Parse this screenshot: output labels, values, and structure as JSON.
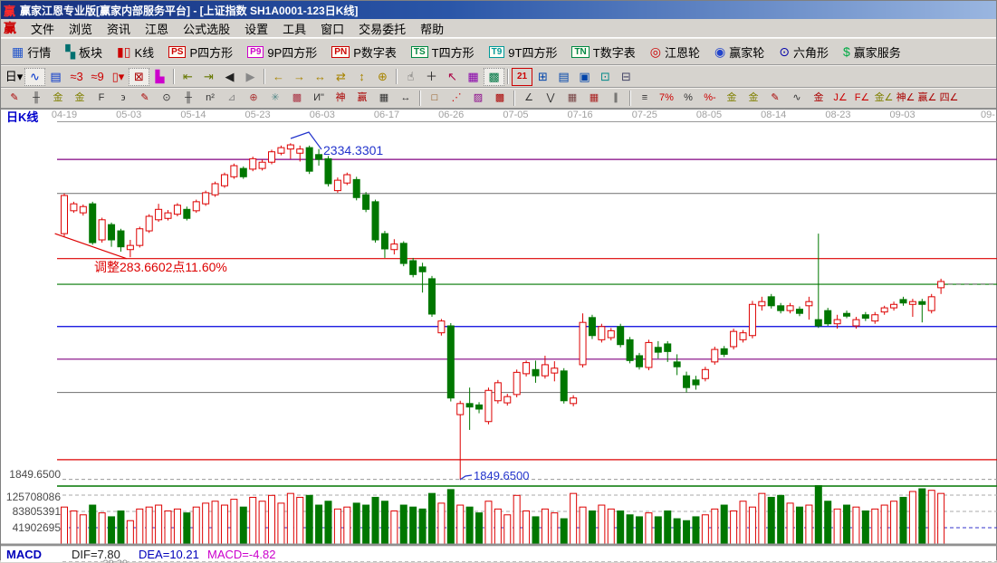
{
  "title_bar": {
    "title": "赢家江恩专业版[赢家内部服务平台] - [上证指数  SH1A0001-123日K线]",
    "logo": "赢"
  },
  "menu_bar": {
    "logo": "赢",
    "items": [
      "文件",
      "浏览",
      "资讯",
      "江恩",
      "公式选股",
      "设置",
      "工具",
      "窗口",
      "交易委托",
      "帮助"
    ]
  },
  "toolbar_main": {
    "items": [
      {
        "label": "行情",
        "glyph": "▦",
        "color": "#2255cc",
        "name": "quotes-button"
      },
      {
        "label": "板块",
        "glyph": "▚",
        "color": "#007070",
        "name": "sectors-button"
      },
      {
        "label": "K线",
        "glyph": "▮▯",
        "color": "#cc0000",
        "name": "kline-button"
      },
      {
        "label": "P四方形",
        "badge": "PS",
        "color": "#cc0000",
        "name": "p-square-button"
      },
      {
        "label": "9P四方形",
        "badge": "P9",
        "color": "#cc00cc",
        "name": "9p-square-button"
      },
      {
        "label": "P数字表",
        "badge": "PN",
        "color": "#cc0000",
        "name": "p-number-table-button"
      },
      {
        "label": "T四方形",
        "badge": "TS",
        "color": "#008844",
        "name": "t-square-button"
      },
      {
        "label": "9T四方形",
        "badge": "T9",
        "color": "#009999",
        "name": "9t-square-button"
      },
      {
        "label": "T数字表",
        "badge": "TN",
        "color": "#008844",
        "name": "t-number-table-button"
      },
      {
        "label": "江恩轮",
        "glyph": "◎",
        "color": "#cc0000",
        "name": "gann-wheel-button"
      },
      {
        "label": "赢家轮",
        "glyph": "◉",
        "color": "#2244cc",
        "name": "winner-wheel-button"
      },
      {
        "label": "六角形",
        "glyph": "⊙",
        "color": "#0000aa",
        "name": "hexagon-button"
      },
      {
        "label": "赢家服务",
        "glyph": "$",
        "color": "#00aa44",
        "name": "winner-service-button"
      }
    ]
  },
  "toolbar_nav": {
    "items": [
      {
        "g": "日▾",
        "c": "#000000",
        "name": "period-day-selector"
      },
      {
        "g": "∿",
        "c": "#0033cc",
        "name": "overlay-style",
        "active": true
      },
      {
        "g": "▤",
        "c": "#0033cc",
        "name": "info-panel"
      },
      {
        "g": "≈3",
        "c": "#cc0000",
        "name": "ma-3"
      },
      {
        "g": "≈9",
        "c": "#cc0000",
        "name": "ma-9"
      },
      {
        "g": "▯▾",
        "c": "#cc0000",
        "name": "candle-type"
      },
      {
        "g": "⊠",
        "c": "#aa0000",
        "name": "gann-marker",
        "active": true
      },
      {
        "g": "▙",
        "c": "#cc00cc",
        "name": "color-histogram"
      },
      {
        "sep": true
      },
      {
        "g": "⇤",
        "c": "#667700",
        "name": "jump-first"
      },
      {
        "g": "⇥",
        "c": "#667700",
        "name": "jump-last"
      },
      {
        "g": "◀",
        "c": "#222222",
        "name": "page-left"
      },
      {
        "g": "▶",
        "c": "#888888",
        "name": "page-right"
      },
      {
        "sep": true
      },
      {
        "g": "←",
        "c": "#a88400",
        "name": "shift-left"
      },
      {
        "g": "→",
        "c": "#a88400",
        "name": "shift-right"
      },
      {
        "g": "↔",
        "c": "#a88400",
        "name": "expand-horizontal"
      },
      {
        "g": "⇄",
        "c": "#a88400",
        "name": "compress-horizontal"
      },
      {
        "g": "↕",
        "c": "#a88400",
        "name": "expand-vertical"
      },
      {
        "g": "⊕",
        "c": "#a88400",
        "name": "zoom-all"
      },
      {
        "sep": true
      },
      {
        "g": "☝",
        "c": "#444444",
        "name": "pan-hand"
      },
      {
        "g": "＋",
        "c": "#222222",
        "name": "crosshair"
      },
      {
        "g": "↖",
        "c": "#aa0044",
        "name": "pointer-select"
      },
      {
        "g": "▦",
        "c": "#8800aa",
        "name": "grid-overlay"
      },
      {
        "g": "▩",
        "c": "#007744",
        "name": "pattern-overlay",
        "active": true
      },
      {
        "sep": true
      },
      {
        "g": "21",
        "c": "#cc0000",
        "name": "calendar",
        "boxed": true
      },
      {
        "g": "⊞",
        "c": "#0044aa",
        "name": "calculator"
      },
      {
        "g": "▤",
        "c": "#0044aa",
        "name": "notes"
      },
      {
        "g": "▣",
        "c": "#0044aa",
        "name": "save"
      },
      {
        "g": "⊡",
        "c": "#008888",
        "name": "export"
      },
      {
        "g": "⊟",
        "c": "#444466",
        "name": "print"
      }
    ]
  },
  "toolbar_draw": {
    "items": [
      {
        "g": "✎",
        "c": "#aa0000",
        "name": "draw-compass"
      },
      {
        "g": "╫",
        "c": "#333333",
        "name": "gann-ruler"
      },
      {
        "g": "金",
        "c": "#808000",
        "name": "gold-ruler-1"
      },
      {
        "g": "金",
        "c": "#808000",
        "name": "gold-ruler-2"
      },
      {
        "g": "F",
        "c": "#333333",
        "name": "fibonacci-ruler"
      },
      {
        "g": "϶",
        "c": "#333333",
        "name": "spiral"
      },
      {
        "g": "✎",
        "c": "#aa0000",
        "name": "pen"
      },
      {
        "g": "⊙",
        "c": "#333333",
        "name": "gann-circle"
      },
      {
        "g": "╫",
        "c": "#333333",
        "name": "price-ruler"
      },
      {
        "g": "n²",
        "c": "#333333",
        "name": "square-of-nine"
      },
      {
        "g": "⊿",
        "c": "#888888",
        "name": "angle-tool"
      },
      {
        "g": "⊕",
        "c": "#aa3333",
        "name": "circle-cross"
      },
      {
        "g": "✳",
        "c": "#558888",
        "name": "star-grid"
      },
      {
        "g": "▩",
        "c": "#aa3344",
        "name": "star-box"
      },
      {
        "g": "И\"",
        "c": "#333333",
        "name": "wave-mark"
      },
      {
        "g": "神",
        "c": "#aa0000",
        "name": "shen-tool"
      },
      {
        "g": "赢",
        "c": "#aa0000",
        "name": "win-grid"
      },
      {
        "g": "▦",
        "c": "#333333",
        "name": "grid-tool"
      },
      {
        "g": "↔",
        "c": "#333333",
        "name": "h-extend"
      },
      {
        "sep": true
      },
      {
        "g": "□",
        "c": "#884400",
        "name": "box-select"
      },
      {
        "g": "⋰",
        "c": "#cc0000",
        "name": "fan-lines"
      },
      {
        "g": "▨",
        "c": "#880088",
        "name": "fan-box"
      },
      {
        "g": "▩",
        "c": "#aa0000",
        "name": "dense-box"
      },
      {
        "sep": true
      },
      {
        "g": "∠",
        "c": "#333333",
        "name": "trend-angle"
      },
      {
        "g": "⋁",
        "c": "#333333",
        "name": "zigzag-tool"
      },
      {
        "g": "▦",
        "c": "#774444",
        "name": "grid-red"
      },
      {
        "g": "▦",
        "c": "#aa2222",
        "name": "grid-red2"
      },
      {
        "g": "∥",
        "c": "#333333",
        "name": "parallel-lines"
      },
      {
        "sep": true
      },
      {
        "g": "≡",
        "c": "#333333",
        "name": "scale-tool"
      },
      {
        "g": "7%",
        "c": "#cc0000",
        "name": "percent-7"
      },
      {
        "g": "%",
        "c": "#333333",
        "name": "percent"
      },
      {
        "g": "%-",
        "c": "#cc0000",
        "name": "percent-line"
      },
      {
        "g": "金",
        "c": "#808000",
        "name": "gold-circle"
      },
      {
        "g": "金",
        "c": "#808000",
        "name": "gold-line"
      },
      {
        "g": "✎",
        "c": "#aa0000",
        "name": "mark-pen"
      },
      {
        "g": "∿",
        "c": "#333333",
        "name": "wave-tool"
      },
      {
        "g": "金",
        "c": "#aa0000",
        "name": "gold-red-line"
      },
      {
        "g": "J∠",
        "c": "#cc0000",
        "name": "j-angle"
      },
      {
        "g": "F∠",
        "c": "#cc0000",
        "name": "f-angle"
      },
      {
        "g": "金∠",
        "c": "#808000",
        "name": "gold-angle"
      },
      {
        "g": "神∠",
        "c": "#aa0000",
        "name": "shen-angle"
      },
      {
        "g": "赢∠",
        "c": "#aa0000",
        "name": "win-angle"
      },
      {
        "g": "四∠",
        "c": "#aa0000",
        "name": "four-angle"
      }
    ]
  },
  "chart": {
    "period_label": "日K线",
    "left_price_label": "1849.6500",
    "macd": {
      "label": "MACD",
      "dif": "DIF=7.80",
      "dea": "DEA=10.21",
      "macd": "MACD=-4.82",
      "scale_partial": "29.29"
    }
  },
  "chart_data": {
    "type": "candlestick",
    "symbol": "上证指数 SH1A0001",
    "period": "日K线",
    "x_labels": [
      "04-19",
      "05-03",
      "05-14",
      "05-23",
      "06-03",
      "06-17",
      "06-26",
      "07-05",
      "07-16",
      "07-25",
      "08-05",
      "08-14",
      "08-23",
      "09-03",
      "09-"
    ],
    "ylim": [
      1840,
      2366
    ],
    "up_color": "#dd0000",
    "down_color": "#007700",
    "candles": [
      [
        2204,
        2262,
        2200,
        2259
      ],
      [
        2237,
        2250,
        2234,
        2247
      ],
      [
        2234,
        2246,
        2230,
        2243
      ],
      [
        2247,
        2250,
        2188,
        2191
      ],
      [
        2195,
        2227,
        2191,
        2224
      ],
      [
        2217,
        2220,
        2185,
        2195
      ],
      [
        2208,
        2211,
        2178,
        2185
      ],
      [
        2181,
        2195,
        2170,
        2187
      ],
      [
        2187,
        2214,
        2184,
        2211
      ],
      [
        2208,
        2232,
        2205,
        2229
      ],
      [
        2224,
        2247,
        2221,
        2239
      ],
      [
        2226,
        2238,
        2223,
        2234
      ],
      [
        2232,
        2248,
        2229,
        2245
      ],
      [
        2239,
        2243,
        2223,
        2226
      ],
      [
        2237,
        2253,
        2234,
        2250
      ],
      [
        2247,
        2266,
        2244,
        2263
      ],
      [
        2260,
        2279,
        2257,
        2276
      ],
      [
        2273,
        2292,
        2270,
        2289
      ],
      [
        2286,
        2305,
        2283,
        2302
      ],
      [
        2298,
        2301,
        2283,
        2286
      ],
      [
        2297,
        2315,
        2294,
        2312
      ],
      [
        2298,
        2311,
        2295,
        2307
      ],
      [
        2307,
        2325,
        2304,
        2322
      ],
      [
        2320,
        2331,
        2317,
        2328
      ],
      [
        2326,
        2334.3,
        2312,
        2332
      ],
      [
        2320,
        2331,
        2308,
        2326
      ],
      [
        2328,
        2331,
        2290,
        2294
      ],
      [
        2318,
        2326,
        2302,
        2311
      ],
      [
        2312,
        2316,
        2272,
        2276
      ],
      [
        2266,
        2285,
        2263,
        2281
      ],
      [
        2277,
        2292,
        2274,
        2289
      ],
      [
        2282,
        2286,
        2252,
        2256
      ],
      [
        2260,
        2264,
        2235,
        2239
      ],
      [
        2250,
        2253,
        2191,
        2195
      ],
      [
        2204,
        2208,
        2169,
        2182
      ],
      [
        2181,
        2196,
        2174,
        2189
      ],
      [
        2190,
        2193,
        2157,
        2161
      ],
      [
        2165,
        2169,
        2141,
        2145
      ],
      [
        2156,
        2162,
        2119,
        2149
      ],
      [
        2139,
        2143,
        2084,
        2088
      ],
      [
        2061,
        2081,
        2057,
        2078
      ],
      [
        2071,
        2075,
        1962,
        1967
      ],
      [
        1943,
        1963,
        1849.7,
        1959
      ],
      [
        1959,
        1982,
        1921,
        1954
      ],
      [
        1957,
        1961,
        1945,
        1951
      ],
      [
        1933,
        1982,
        1929,
        1978
      ],
      [
        1963,
        1993,
        1959,
        1989
      ],
      [
        1960,
        1973,
        1956,
        1969
      ],
      [
        1972,
        2008,
        1968,
        2004
      ],
      [
        2002,
        2021,
        1998,
        2018
      ],
      [
        2008,
        2021,
        1989,
        1999
      ],
      [
        1999,
        2028,
        1995,
        2015
      ],
      [
        2003,
        2020,
        1991,
        2010
      ],
      [
        2006,
        2010,
        1959,
        1963
      ],
      [
        1959,
        1971,
        1955,
        1967
      ],
      [
        2015,
        2089,
        2011,
        2076
      ],
      [
        2083,
        2087,
        2052,
        2057
      ],
      [
        2051,
        2074,
        2047,
        2070
      ],
      [
        2054,
        2068,
        2050,
        2064
      ],
      [
        2070,
        2074,
        2040,
        2044
      ],
      [
        2051,
        2055,
        2017,
        2021
      ],
      [
        2028,
        2032,
        2008,
        2012
      ],
      [
        2011,
        2051,
        2007,
        2047
      ],
      [
        2040,
        2049,
        2024,
        2033
      ],
      [
        2045,
        2049,
        2019,
        2034
      ],
      [
        2019,
        2030,
        2000,
        2012
      ],
      [
        1999,
        2005,
        1975,
        1982
      ],
      [
        1993,
        1999,
        1979,
        1986
      ],
      [
        1995,
        2012,
        1991,
        2008
      ],
      [
        2019,
        2041,
        2015,
        2037
      ],
      [
        2038,
        2042,
        2026,
        2030
      ],
      [
        2041,
        2067,
        2037,
        2063
      ],
      [
        2051,
        2065,
        2047,
        2061
      ],
      [
        2057,
        2107,
        2053,
        2102
      ],
      [
        2100,
        2113,
        2093,
        2106
      ],
      [
        2113,
        2117,
        2096,
        2100
      ],
      [
        2100,
        2104,
        2089,
        2093
      ],
      [
        2093,
        2104,
        2089,
        2100
      ],
      [
        2095,
        2099,
        2085,
        2089
      ],
      [
        2100,
        2113,
        2080,
        2106
      ],
      [
        2080,
        2204,
        2068,
        2071
      ],
      [
        2093,
        2097,
        2071,
        2074
      ],
      [
        2074,
        2087,
        2067,
        2080
      ],
      [
        2089,
        2093,
        2082,
        2085
      ],
      [
        2071,
        2084,
        2067,
        2080
      ],
      [
        2087,
        2091,
        2078,
        2082
      ],
      [
        2078,
        2091,
        2074,
        2087
      ],
      [
        2091,
        2100,
        2087,
        2097
      ],
      [
        2097,
        2106,
        2093,
        2102
      ],
      [
        2109,
        2113,
        2100,
        2104
      ],
      [
        2102,
        2110,
        2084,
        2106
      ],
      [
        2106,
        2110,
        2076,
        2102
      ],
      [
        2093,
        2117,
        2089,
        2113
      ],
      [
        2126,
        2139,
        2117,
        2135
      ]
    ],
    "volumes_millions": [
      95,
      85,
      75,
      100,
      80,
      70,
      85,
      60,
      90,
      95,
      100,
      85,
      90,
      80,
      95,
      105,
      110,
      100,
      115,
      95,
      120,
      110,
      125,
      105,
      130,
      120,
      125,
      100,
      110,
      90,
      95,
      105,
      100,
      120,
      110,
      85,
      100,
      95,
      90,
      130,
      105,
      140,
      100,
      95,
      80,
      110,
      90,
      75,
      125,
      85,
      70,
      90,
      80,
      65,
      130,
      95,
      85,
      100,
      90,
      85,
      75,
      70,
      80,
      70,
      85,
      65,
      60,
      70,
      75,
      90,
      100,
      85,
      110,
      95,
      130,
      120,
      125,
      105,
      95,
      100,
      150,
      110,
      90,
      100,
      95,
      85,
      90,
      100,
      110,
      120,
      135,
      142,
      138,
      130
    ],
    "volume_axis_ticks": [
      "125708086",
      "83805391",
      "41902695"
    ],
    "levels": [
      {
        "price": 2311,
        "color": "#800080"
      },
      {
        "price": 2262,
        "color": "#808080"
      },
      {
        "price": 2168,
        "color": "#dd0000"
      },
      {
        "price": 2131,
        "color": "#007700"
      },
      {
        "price": 2070,
        "color": "#0000dd"
      },
      {
        "price": 2023,
        "color": "#800080"
      },
      {
        "price": 1975,
        "color": "#808080"
      },
      {
        "price": 1878,
        "color": "#dd0000"
      }
    ],
    "dashed_level": {
      "price": 1849.65,
      "color": "#999999"
    },
    "annotations": {
      "peak": {
        "text": "2334.3301",
        "price": 2334.33,
        "color": "#2233cc"
      },
      "low": {
        "text": "1849.6500",
        "price": 1849.65,
        "color": "#2233cc"
      },
      "adjustment": {
        "text": "调整283.6602点11.60%",
        "color": "#dd0000"
      }
    },
    "trendline": {
      "from_index": -1,
      "from_price": 2204,
      "to_index": 6.6,
      "to_price": 2168,
      "color": "#dd0000"
    },
    "last_close_extension": {
      "price": 2131.5,
      "color": "#999999"
    }
  }
}
